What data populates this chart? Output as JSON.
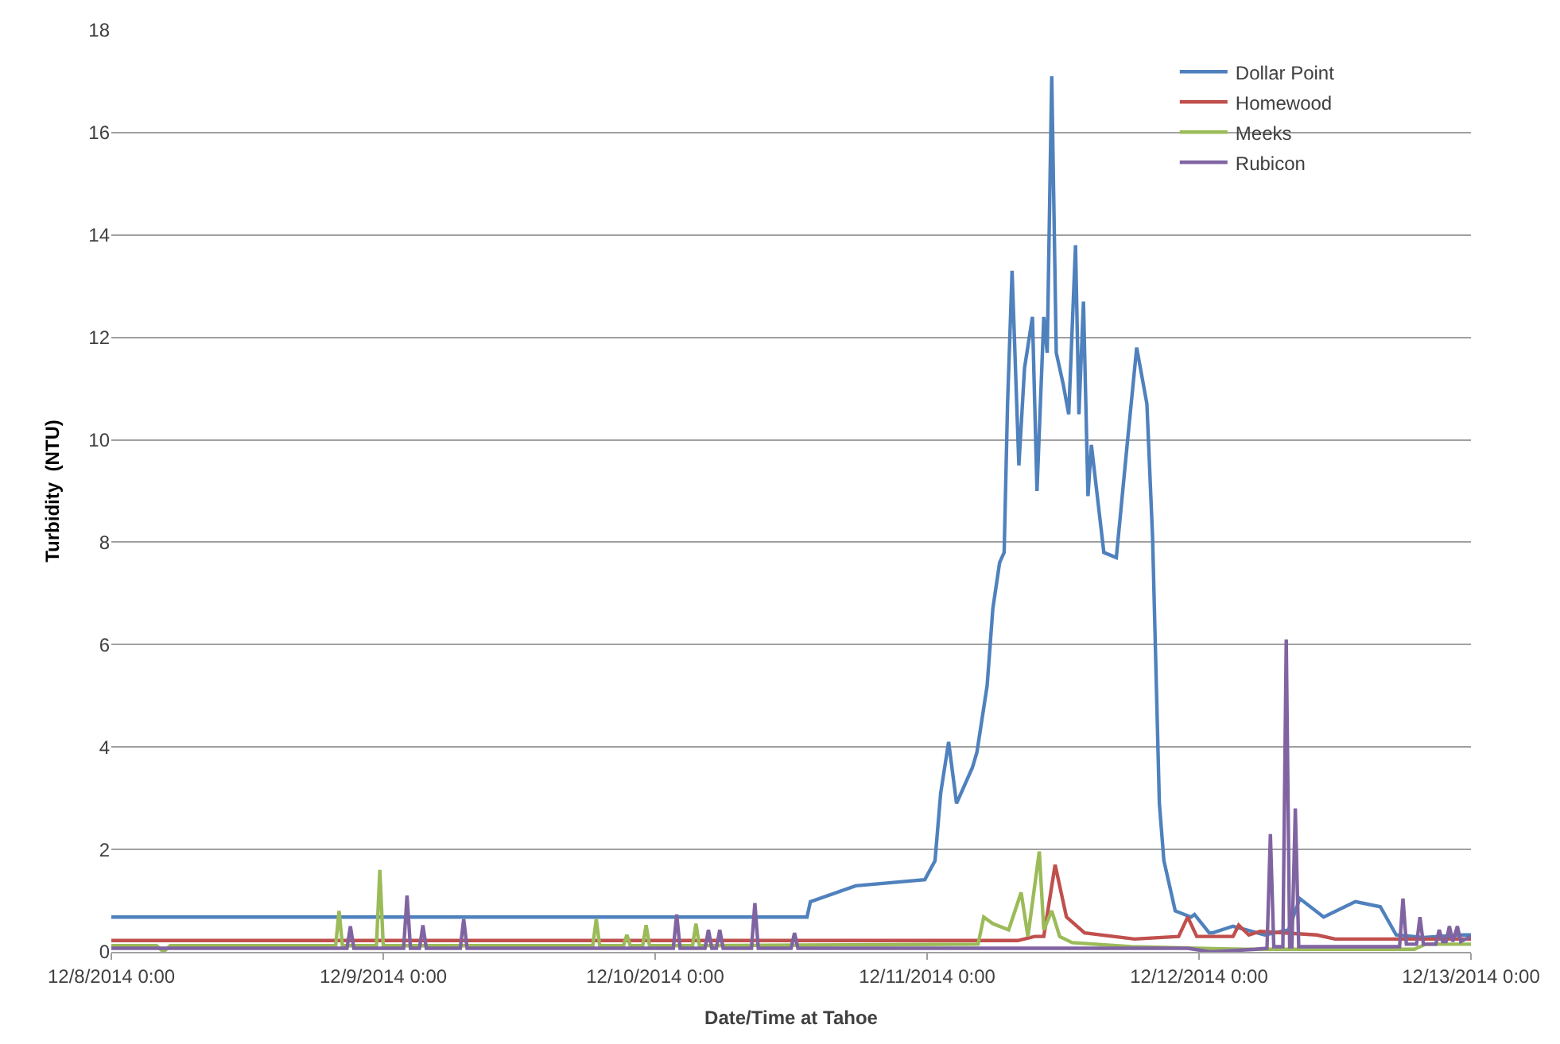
{
  "chart_data": {
    "type": "line",
    "xlabel": "Date/Time at Tahoe",
    "ylabel": "Turbidity  (NTU)",
    "xlim": [
      "2014-12-08T00:00",
      "2014-12-13T00:00"
    ],
    "xticks": [
      {
        "value": "2014-12-08T00:00",
        "label": "12/8/2014 0:00"
      },
      {
        "value": "2014-12-09T00:00",
        "label": "12/9/2014 0:00"
      },
      {
        "value": "2014-12-10T00:00",
        "label": "12/10/2014 0:00"
      },
      {
        "value": "2014-12-11T00:00",
        "label": "12/11/2014 0:00"
      },
      {
        "value": "2014-12-12T00:00",
        "label": "12/12/2014 0:00"
      },
      {
        "value": "2014-12-13T00:00",
        "label": "12/13/2014 0:00"
      }
    ],
    "ylim": [
      0,
      18
    ],
    "yticks": [
      0,
      2,
      4,
      6,
      8,
      10,
      12,
      14,
      16,
      18
    ],
    "grid": "y",
    "legend": "top right",
    "series": [
      {
        "name": "Dollar Point",
        "color": "#4f81bd",
        "x": [
          "2014-12-08T00:00",
          "2014-12-10T13:24",
          "2014-12-10T13:42",
          "2014-12-10T17:42",
          "2014-12-10T23:48",
          "2014-12-11T00:42",
          "2014-12-11T01:12",
          "2014-12-11T01:54",
          "2014-12-11T02:36",
          "2014-12-11T04:00",
          "2014-12-11T04:24",
          "2014-12-11T05:18",
          "2014-12-11T05:48",
          "2014-12-11T06:24",
          "2014-12-11T06:48",
          "2014-12-11T07:06",
          "2014-12-11T07:30",
          "2014-12-11T08:06",
          "2014-12-11T08:36",
          "2014-12-11T09:18",
          "2014-12-11T09:42",
          "2014-12-11T10:18",
          "2014-12-11T10:36",
          "2014-12-11T11:00",
          "2014-12-11T11:24",
          "2014-12-11T12:00",
          "2014-12-11T12:30",
          "2014-12-11T13:06",
          "2014-12-11T13:24",
          "2014-12-11T13:48",
          "2014-12-11T14:12",
          "2014-12-11T14:30",
          "2014-12-11T15:36",
          "2014-12-11T16:42",
          "2014-12-11T17:42",
          "2014-12-11T18:30",
          "2014-12-11T19:24",
          "2014-12-11T19:54",
          "2014-12-11T20:30",
          "2014-12-11T20:54",
          "2014-12-11T21:54",
          "2014-12-11T23:18",
          "2014-12-11T23:36",
          "2014-12-12T00:54",
          "2014-12-12T01:12",
          "2014-12-12T03:00",
          "2014-12-12T05:48",
          "2014-12-12T07:54",
          "2014-12-12T08:54",
          "2014-12-12T11:00",
          "2014-12-12T13:48",
          "2014-12-12T16:00",
          "2014-12-12T17:24",
          "2014-12-12T19:48",
          "2014-12-12T23:18",
          "2014-12-13T00:00"
        ],
        "values": [
          0.68,
          0.68,
          0.98,
          1.29,
          1.41,
          1.78,
          3.1,
          4.1,
          2.9,
          3.6,
          3.9,
          5.2,
          6.7,
          7.6,
          7.8,
          10.7,
          13.3,
          9.5,
          11.4,
          12.4,
          9.0,
          12.4,
          11.7,
          17.1,
          11.7,
          11.1,
          10.5,
          13.8,
          10.5,
          12.7,
          8.9,
          9.9,
          7.8,
          7.7,
          10.0,
          11.8,
          10.7,
          8.1,
          2.9,
          1.78,
          0.8,
          0.68,
          0.73,
          0.37,
          0.37,
          0.5,
          0.33,
          0.43,
          1.04,
          0.68,
          0.98,
          0.88,
          0.33,
          0.28,
          0.33,
          0.33
        ]
      },
      {
        "name": "Homewood",
        "color": "#c0504d",
        "x": [
          "2014-12-08T00:00",
          "2014-12-11T08:00",
          "2014-12-11T09:30",
          "2014-12-11T10:18",
          "2014-12-11T11:18",
          "2014-12-11T12:18",
          "2014-12-11T13:54",
          "2014-12-11T18:18",
          "2014-12-11T22:12",
          "2014-12-11T23:00",
          "2014-12-11T23:48",
          "2014-12-12T03:00",
          "2014-12-12T03:30",
          "2014-12-12T04:24",
          "2014-12-12T05:24",
          "2014-12-12T10:24",
          "2014-12-12T12:00",
          "2014-12-13T00:00"
        ],
        "values": [
          0.22,
          0.22,
          0.3,
          0.3,
          1.7,
          0.68,
          0.37,
          0.25,
          0.3,
          0.68,
          0.3,
          0.3,
          0.52,
          0.33,
          0.4,
          0.33,
          0.25,
          0.25
        ]
      },
      {
        "name": "Meeks",
        "color": "#9bbb59",
        "x": [
          "2014-12-08T00:00",
          "2014-12-08T04:00",
          "2014-12-08T04:36",
          "2014-12-08T05:12",
          "2014-12-08T19:48",
          "2014-12-08T20:06",
          "2014-12-08T20:24",
          "2014-12-08T23:24",
          "2014-12-08T23:42",
          "2014-12-09T00:00",
          "2014-12-09T18:30",
          "2014-12-09T18:48",
          "2014-12-09T19:06",
          "2014-12-09T21:12",
          "2014-12-09T21:30",
          "2014-12-09T21:48",
          "2014-12-09T22:54",
          "2014-12-09T23:12",
          "2014-12-09T23:30",
          "2014-12-10T03:18",
          "2014-12-10T03:36",
          "2014-12-10T03:54",
          "2014-12-11T04:30",
          "2014-12-11T05:00",
          "2014-12-11T05:48",
          "2014-12-11T07:12",
          "2014-12-11T08:18",
          "2014-12-11T08:54",
          "2014-12-11T09:54",
          "2014-12-11T10:18",
          "2014-12-11T11:00",
          "2014-12-11T11:42",
          "2014-12-11T12:48",
          "2014-12-11T18:00",
          "2014-12-12T04:00",
          "2014-12-12T19:00",
          "2014-12-12T20:00",
          "2014-12-13T00:00"
        ],
        "values": [
          0.12,
          0.12,
          0.0,
          0.12,
          0.12,
          0.8,
          0.12,
          0.12,
          1.6,
          0.12,
          0.12,
          0.64,
          0.12,
          0.12,
          0.33,
          0.12,
          0.12,
          0.52,
          0.12,
          0.12,
          0.55,
          0.12,
          0.15,
          0.68,
          0.55,
          0.43,
          1.16,
          0.3,
          1.96,
          0.43,
          0.8,
          0.3,
          0.18,
          0.1,
          0.05,
          0.05,
          0.15,
          0.15
        ]
      },
      {
        "name": "Rubicon",
        "color": "#8064a2",
        "x": [
          "2014-12-08T00:00",
          "2014-12-08T20:48",
          "2014-12-08T21:06",
          "2014-12-08T21:24",
          "2014-12-09T01:48",
          "2014-12-09T02:06",
          "2014-12-09T02:24",
          "2014-12-09T03:12",
          "2014-12-09T03:30",
          "2014-12-09T03:48",
          "2014-12-09T06:48",
          "2014-12-09T07:06",
          "2014-12-09T07:24",
          "2014-12-10T01:36",
          "2014-12-10T01:54",
          "2014-12-10T02:12",
          "2014-12-10T04:24",
          "2014-12-10T04:42",
          "2014-12-10T05:00",
          "2014-12-10T05:24",
          "2014-12-10T05:42",
          "2014-12-10T06:00",
          "2014-12-10T08:30",
          "2014-12-10T08:48",
          "2014-12-10T09:06",
          "2014-12-10T12:00",
          "2014-12-10T12:18",
          "2014-12-10T12:36",
          "2014-12-11T23:00",
          "2014-12-12T01:00",
          "2014-12-12T05:00",
          "2014-12-12T06:00",
          "2014-12-12T06:18",
          "2014-12-12T06:36",
          "2014-12-12T07:24",
          "2014-12-12T07:42",
          "2014-12-12T08:00",
          "2014-12-12T08:12",
          "2014-12-12T08:30",
          "2014-12-12T08:48",
          "2014-12-12T17:42",
          "2014-12-12T18:00",
          "2014-12-12T18:18",
          "2014-12-12T19:12",
          "2014-12-12T19:30",
          "2014-12-12T19:48",
          "2014-12-12T20:54",
          "2014-12-12T21:12",
          "2014-12-12T21:30",
          "2014-12-12T21:48",
          "2014-12-12T22:06",
          "2014-12-12T22:24",
          "2014-12-12T22:48",
          "2014-12-12T23:06",
          "2014-12-13T00:00"
        ],
        "values": [
          0.07,
          0.07,
          0.5,
          0.07,
          0.07,
          1.1,
          0.07,
          0.07,
          0.52,
          0.07,
          0.07,
          0.64,
          0.07,
          0.07,
          0.73,
          0.07,
          0.07,
          0.43,
          0.07,
          0.07,
          0.43,
          0.07,
          0.07,
          0.95,
          0.07,
          0.07,
          0.37,
          0.07,
          0.07,
          0.0,
          0.05,
          0.07,
          2.3,
          0.1,
          0.1,
          6.1,
          0.1,
          0.1,
          2.8,
          0.1,
          0.1,
          1.04,
          0.15,
          0.15,
          0.68,
          0.15,
          0.15,
          0.43,
          0.2,
          0.2,
          0.5,
          0.2,
          0.5,
          0.2,
          0.3
        ]
      }
    ]
  }
}
